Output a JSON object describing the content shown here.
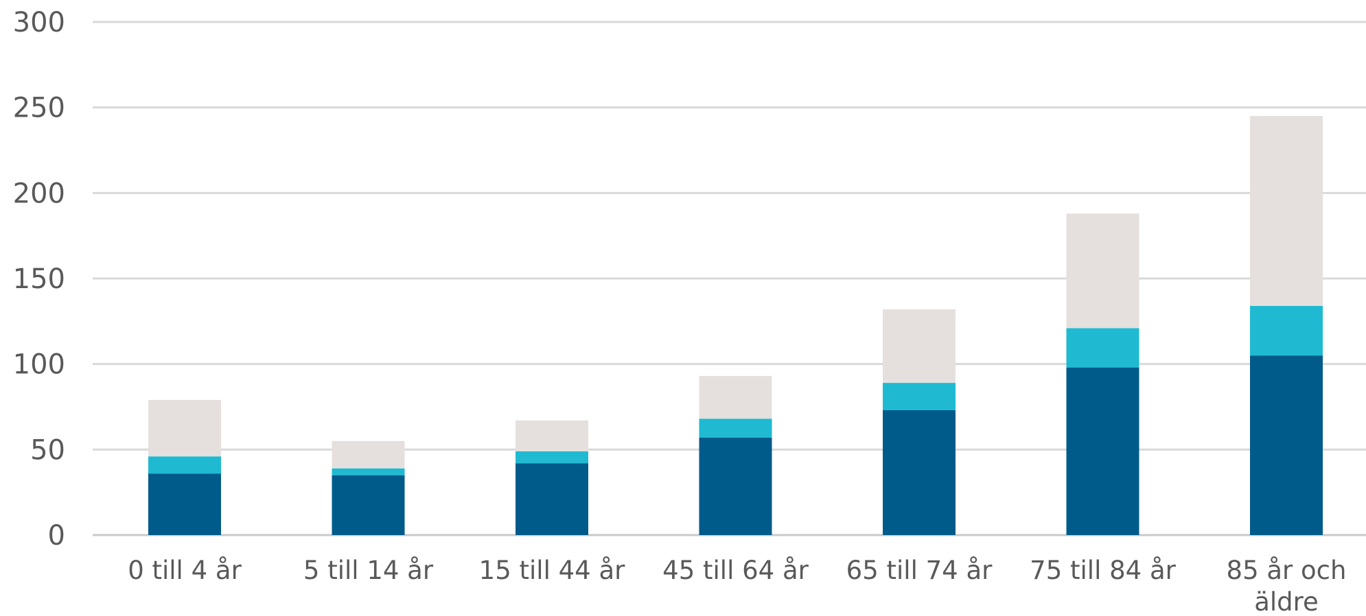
{
  "chart_data": {
    "type": "bar",
    "stacked": true,
    "categories": [
      "0 till 4 år",
      "5 till 14 år",
      "15 till 44 år",
      "45 till 64 år",
      "65 till 74 år",
      "75 till 84 år",
      "85 år och äldre"
    ],
    "category_lines": [
      [
        "0 till 4 år"
      ],
      [
        "5 till 14 år"
      ],
      [
        "15 till 44 år"
      ],
      [
        "45 till 64 år"
      ],
      [
        "65 till 74 år"
      ],
      [
        "75 till 84 år"
      ],
      [
        "85 år och",
        "äldre"
      ]
    ],
    "series": [
      {
        "color": "#005b8a",
        "values": [
          36,
          35,
          42,
          57,
          73,
          98,
          105
        ]
      },
      {
        "color": "#1fbad1",
        "values": [
          10,
          4,
          7,
          11,
          16,
          23,
          29
        ]
      },
      {
        "color": "#e5e0de",
        "values": [
          33,
          16,
          18,
          25,
          43,
          67,
          111
        ]
      }
    ],
    "yticks": [
      0,
      50,
      100,
      150,
      200,
      250,
      300
    ],
    "ylim": [
      0,
      300
    ],
    "grid": true,
    "xlabel": "",
    "ylabel": "",
    "title": ""
  }
}
